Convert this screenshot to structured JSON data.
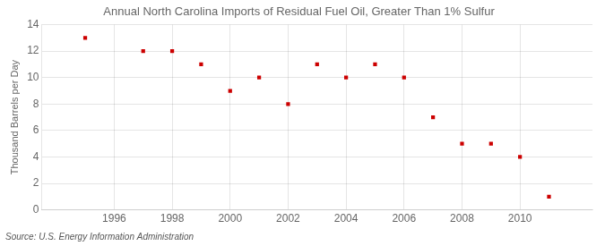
{
  "chart_data": {
    "type": "scatter",
    "title": "Annual North Carolina Imports of Residual Fuel Oil, Greater Than 1% Sulfur",
    "ylabel": "Thousand Barrels per Day",
    "annotation": "Source: U.S. Energy Information Administration",
    "x": [
      1995,
      1997,
      1998,
      1999,
      2000,
      2001,
      2002,
      2003,
      2004,
      2005,
      2006,
      2007,
      2008,
      2009,
      2010,
      2011
    ],
    "values": [
      13.0,
      12.0,
      12.0,
      11.0,
      9.0,
      10.0,
      8.0,
      11.0,
      10.0,
      11.0,
      10.0,
      7.0,
      5.0,
      5.0,
      4.0,
      1.0
    ],
    "color": "#cc0000",
    "marker": "square",
    "xlim": [
      1993.5,
      2012.5
    ],
    "ylim": [
      0,
      14
    ],
    "xticks": [
      1996,
      1998,
      2000,
      2002,
      2004,
      2006,
      2008,
      2010
    ],
    "yticks": [
      0,
      2,
      4,
      6,
      8,
      10,
      12,
      14
    ],
    "grid": true
  }
}
